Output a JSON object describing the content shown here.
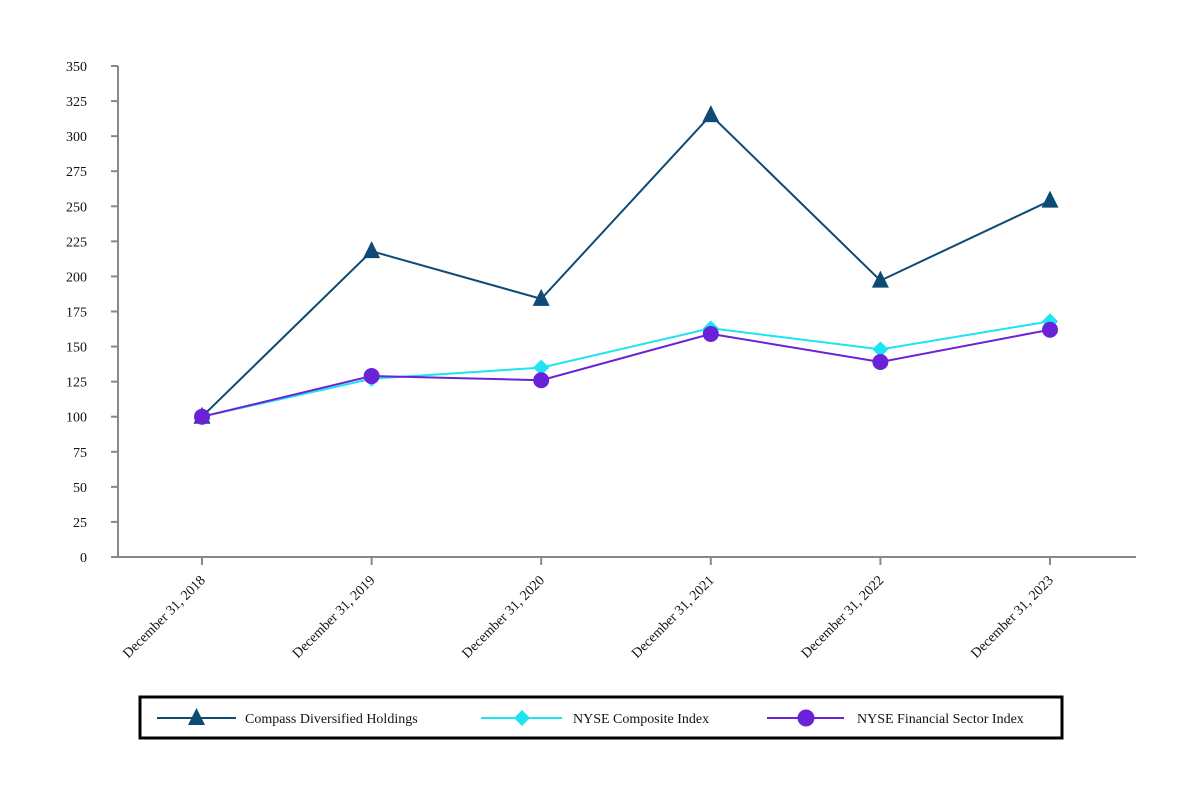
{
  "chart_data": {
    "type": "line",
    "title": "",
    "xlabel": "",
    "ylabel": "",
    "categories": [
      "December 31, 2018",
      "December 31, 2019",
      "December 31, 2020",
      "December 31, 2021",
      "December 31, 2022",
      "December 31, 2023"
    ],
    "ylim": [
      0,
      350
    ],
    "yticks": [
      0,
      25,
      50,
      75,
      100,
      125,
      150,
      175,
      200,
      225,
      250,
      275,
      300,
      325,
      350
    ],
    "grid": false,
    "legend_position": "bottom",
    "series": [
      {
        "name": "Compass Diversified Holdings",
        "values": [
          100,
          218,
          184,
          315,
          197,
          254
        ],
        "color": "#0d4a74",
        "marker": "triangle"
      },
      {
        "name": "NYSE Composite Index",
        "values": [
          100,
          127,
          135,
          163,
          148,
          168
        ],
        "color": "#1ee3f0",
        "marker": "diamond"
      },
      {
        "name": "NYSE Financial Sector Index",
        "values": [
          100,
          129,
          126,
          159,
          139,
          162
        ],
        "color": "#6a22d9",
        "marker": "circle"
      }
    ]
  }
}
